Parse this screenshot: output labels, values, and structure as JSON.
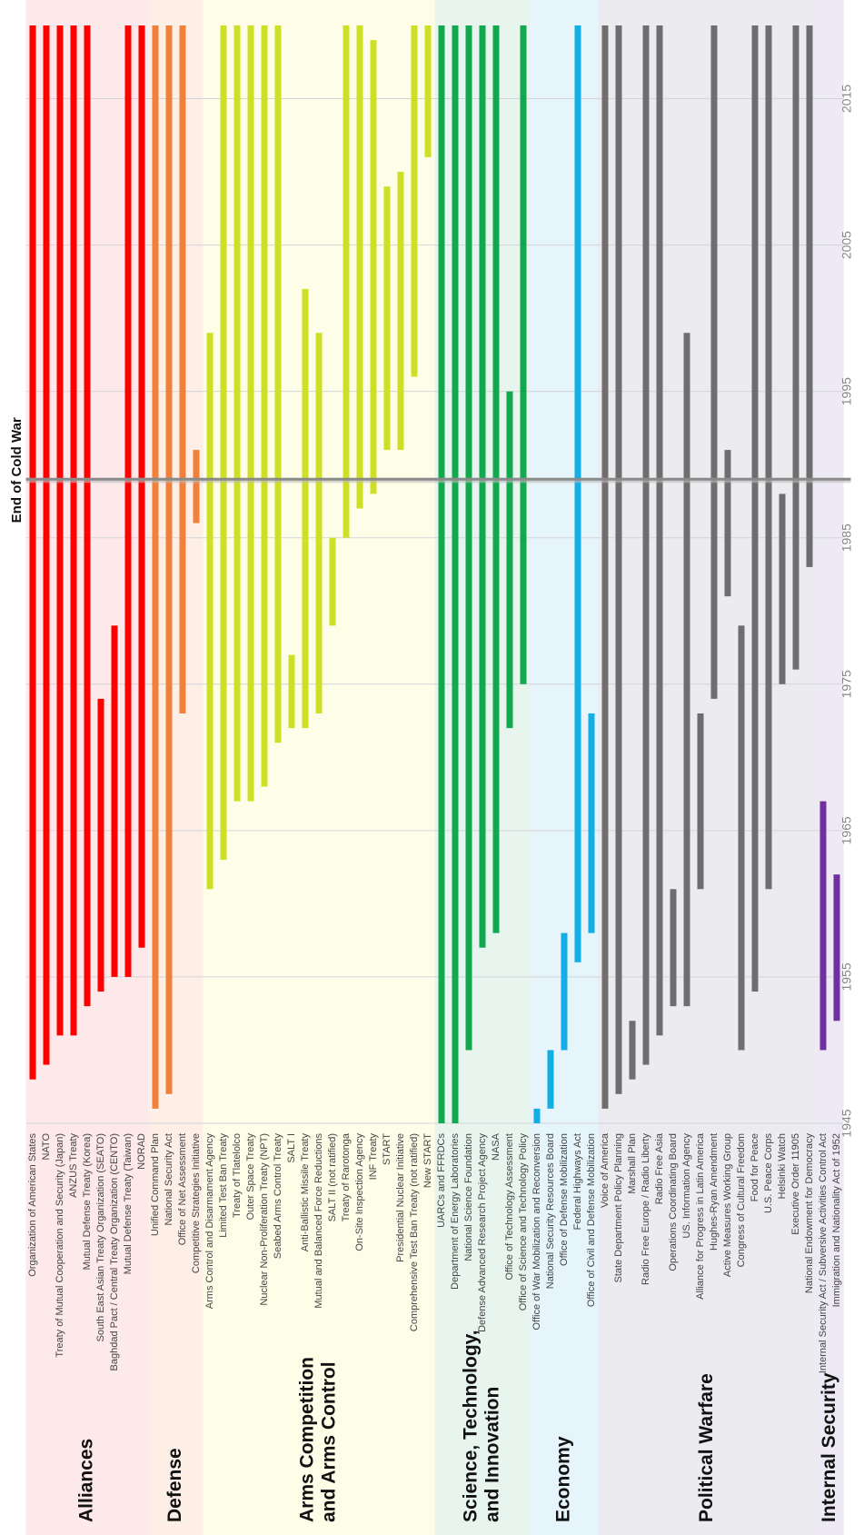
{
  "chart_data": {
    "type": "gantt",
    "xlim": [
      1945,
      2020
    ],
    "xticks": [
      1945,
      1955,
      1965,
      1975,
      1985,
      1995,
      2005,
      2015
    ],
    "grid": true,
    "annotation": {
      "label": "End of Cold War",
      "x": 1989
    },
    "groups": [
      {
        "name": [
          "Alliances"
        ],
        "color": "#ff0000",
        "background": "#fde9ea",
        "categories": [
          "Organization of American States",
          "NATO",
          "Treaty of Mutual Cooperation and Security (Japan)",
          "ANZUS Treaty",
          "Mutual Defense Treaty (Korea)",
          "South East Asian Treaty Organization (SEATO)",
          "Baghdad Pact / Central Treaty Organization (CENTO)",
          "Mutual Defense Treaty (Taiwan)",
          "NORAD"
        ],
        "start": [
          1948,
          1949,
          1951,
          1951,
          1953,
          1954,
          1955,
          1955,
          1957
        ],
        "end": [
          2020,
          2020,
          2020,
          2020,
          2020,
          1974,
          1979,
          2020,
          2020
        ]
      },
      {
        "name": [
          "Defense"
        ],
        "color": "#f0813c",
        "background": "#fdeee6",
        "categories": [
          "Unified Command Plan",
          "National Security Act",
          "Office of Net Assessment",
          "Competitive Strategies Initiative"
        ],
        "start": [
          1946,
          1947,
          1973,
          1986
        ],
        "end": [
          2020,
          2020,
          2020,
          1991
        ]
      },
      {
        "name": [
          "Arms Competition",
          "and Arms Control"
        ],
        "color": "#cde025",
        "background": "#fefee8",
        "categories": [
          "Arms Control and Disarmament Agency",
          "Limited Test Ban Treaty",
          "Treaty of Tlatelolco",
          "Outer Space Treaty",
          "Nuclear Non-Proliferation Treaty (NPT)",
          "Seabed Arms Control Treaty",
          "SALT I",
          "Anti-Ballistic Missile Treaty",
          "Mutual and Balanced Force Reductions",
          "SALT II (not ratified)",
          "Treaty of Rarotonga",
          "On-Site Inspection Agency",
          "INF Treaty",
          "START",
          "Presidential Nuclear Initiative",
          "Comprehensive Test Ban Treaty (not ratified)",
          "New START"
        ],
        "start": [
          1961,
          1963,
          1967,
          1967,
          1968,
          1971,
          1972,
          1972,
          1973,
          1979,
          1985,
          1987,
          1988,
          1991,
          1991,
          1996,
          2011
        ],
        "end": [
          1999,
          2020,
          2020,
          2020,
          2020,
          2020,
          1977,
          2002,
          1999,
          1985,
          2020,
          2020,
          2019,
          2009,
          2010,
          2020,
          2020
        ]
      },
      {
        "name": [
          "Science, Technology,",
          "and Innovation"
        ],
        "color": "#11a84f",
        "background": "#e8f5ee",
        "categories": [
          "UARCs and FFRDCs",
          "Department of Energy Laboratories",
          "National Science Foundation",
          "Defense Advanced Research Project Agency",
          "NASA",
          "Office of Technology Assessment",
          "Office of Science and Technology Policy"
        ],
        "start": [
          1945,
          1945,
          1950,
          1957,
          1958,
          1972,
          1975
        ],
        "end": [
          2020,
          2020,
          2020,
          2020,
          2020,
          1995,
          2020
        ]
      },
      {
        "name": [
          "Economy"
        ],
        "color": "#13aee6",
        "background": "#e6f4fb",
        "categories": [
          "Office of War Mobilization and Reconversion",
          "National Security Resources Board",
          "Office of Defense Mobilization",
          "Federal Highways Act",
          "Office of Civil and Defense Mobilization"
        ],
        "start": [
          1945,
          1946,
          1950,
          1956,
          1958
        ],
        "end": [
          1946,
          1950,
          1958,
          2020,
          1973
        ]
      },
      {
        "name": [
          "Political Warfare"
        ],
        "color": "#6f6d6d",
        "background": "#ecebf0",
        "categories": [
          "Voice of America",
          "State Department Policy Planning",
          "Marshall Plan",
          "Radio Free Europe / Radio Liberty",
          "Radio Free Asia",
          "Operations Coordinating Board",
          "US. Information Agency",
          "Alliance for Progress in Latin America",
          "Hughes-Ryan Amendment",
          "Active Measures Working Group",
          "Congress of Cultural Freedom",
          "Food for Peace",
          "U.S. Peace Corps",
          "Helsinki Watch",
          "Executive Order 11905",
          "National Endowment for Democracy"
        ],
        "start": [
          1946,
          1947,
          1948,
          1949,
          1951,
          1953,
          1953,
          1961,
          1974,
          1981,
          1950,
          1954,
          1961,
          1975,
          1976,
          1983
        ],
        "end": [
          2020,
          2020,
          1952,
          2020,
          2020,
          1961,
          1999,
          1973,
          2020,
          1991,
          1979,
          2020,
          2020,
          1988,
          2020,
          2020
        ]
      },
      {
        "name": [
          "Internal Security"
        ],
        "color": "#7030a0",
        "background": "#eeeaf5",
        "categories": [
          "Internal Security Act / Subversive Activities Control Act",
          "Immigration and Nationality Act of 1952"
        ],
        "start": [
          1950,
          1952
        ],
        "end": [
          1967,
          1962
        ]
      }
    ]
  }
}
